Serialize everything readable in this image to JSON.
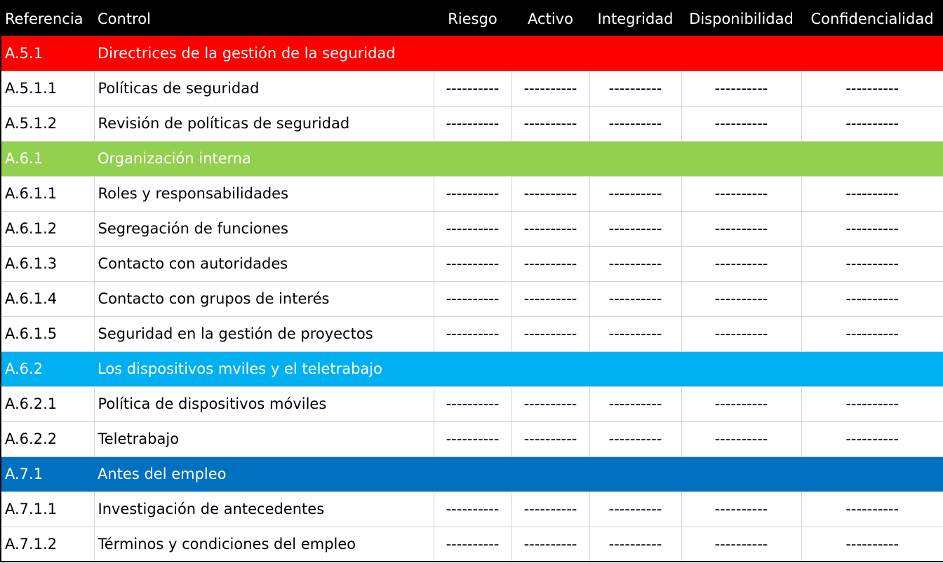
{
  "columns": [
    "Referencia",
    "Control",
    "Riesgo",
    "Activo",
    "Integridad",
    "Disponibilidad",
    "Confidencialidad"
  ],
  "group_colors": {
    "A.5.1": "#ff0000",
    "A.6.1": "#92d050",
    "A.6.2": "#00b0f0",
    "A.7.1": "#0070c0"
  },
  "rows": [
    {
      "type": "group",
      "ref": "A.5.1",
      "control": "Directrices de la gestión de la seguridad"
    },
    {
      "type": "item",
      "ref": "A.5.1.1",
      "control": "Políticas de seguridad",
      "values": [
        "----------",
        "----------",
        "----------",
        "----------",
        "----------"
      ]
    },
    {
      "type": "item",
      "ref": "A.5.1.2",
      "control": "Revisión de políticas de seguridad",
      "values": [
        "----------",
        "----------",
        "----------",
        "----------",
        "----------"
      ]
    },
    {
      "type": "group",
      "ref": "A.6.1",
      "control": "Organización interna"
    },
    {
      "type": "item",
      "ref": "A.6.1.1",
      "control": "Roles y responsabilidades",
      "values": [
        "----------",
        "----------",
        "----------",
        "----------",
        "----------"
      ]
    },
    {
      "type": "item",
      "ref": "A.6.1.2",
      "control": "Segregación de funciones",
      "values": [
        "----------",
        "----------",
        "----------",
        "----------",
        "----------"
      ]
    },
    {
      "type": "item",
      "ref": "A.6.1.3",
      "control": "Contacto con autoridades",
      "values": [
        "----------",
        "----------",
        "----------",
        "----------",
        "----------"
      ]
    },
    {
      "type": "item",
      "ref": "A.6.1.4",
      "control": "Contacto con grupos de interés",
      "values": [
        "----------",
        "----------",
        "----------",
        "----------",
        "----------"
      ]
    },
    {
      "type": "item",
      "ref": "A.6.1.5",
      "control": "Seguridad en la gestión de proyectos",
      "values": [
        "----------",
        "----------",
        "----------",
        "----------",
        "----------"
      ]
    },
    {
      "type": "group",
      "ref": "A.6.2",
      "control": "Los dispositivos mviles y el teletrabajo"
    },
    {
      "type": "item",
      "ref": "A.6.2.1",
      "control": "Política de dispositivos móviles",
      "values": [
        "----------",
        "----------",
        "----------",
        "----------",
        "----------"
      ]
    },
    {
      "type": "item",
      "ref": "A.6.2.2",
      "control": "Teletrabajo",
      "values": [
        "----------",
        "----------",
        "----------",
        "----------",
        "----------"
      ]
    },
    {
      "type": "group",
      "ref": "A.7.1",
      "control": "Antes del empleo"
    },
    {
      "type": "item",
      "ref": "A.7.1.1",
      "control": "Investigación de antecedentes",
      "values": [
        "----------",
        "----------",
        "----------",
        "----------",
        "----------"
      ]
    },
    {
      "type": "item",
      "ref": "A.7.1.2",
      "control": "Términos y condiciones del empleo",
      "values": [
        "----------",
        "----------",
        "----------",
        "----------",
        "----------"
      ]
    }
  ]
}
